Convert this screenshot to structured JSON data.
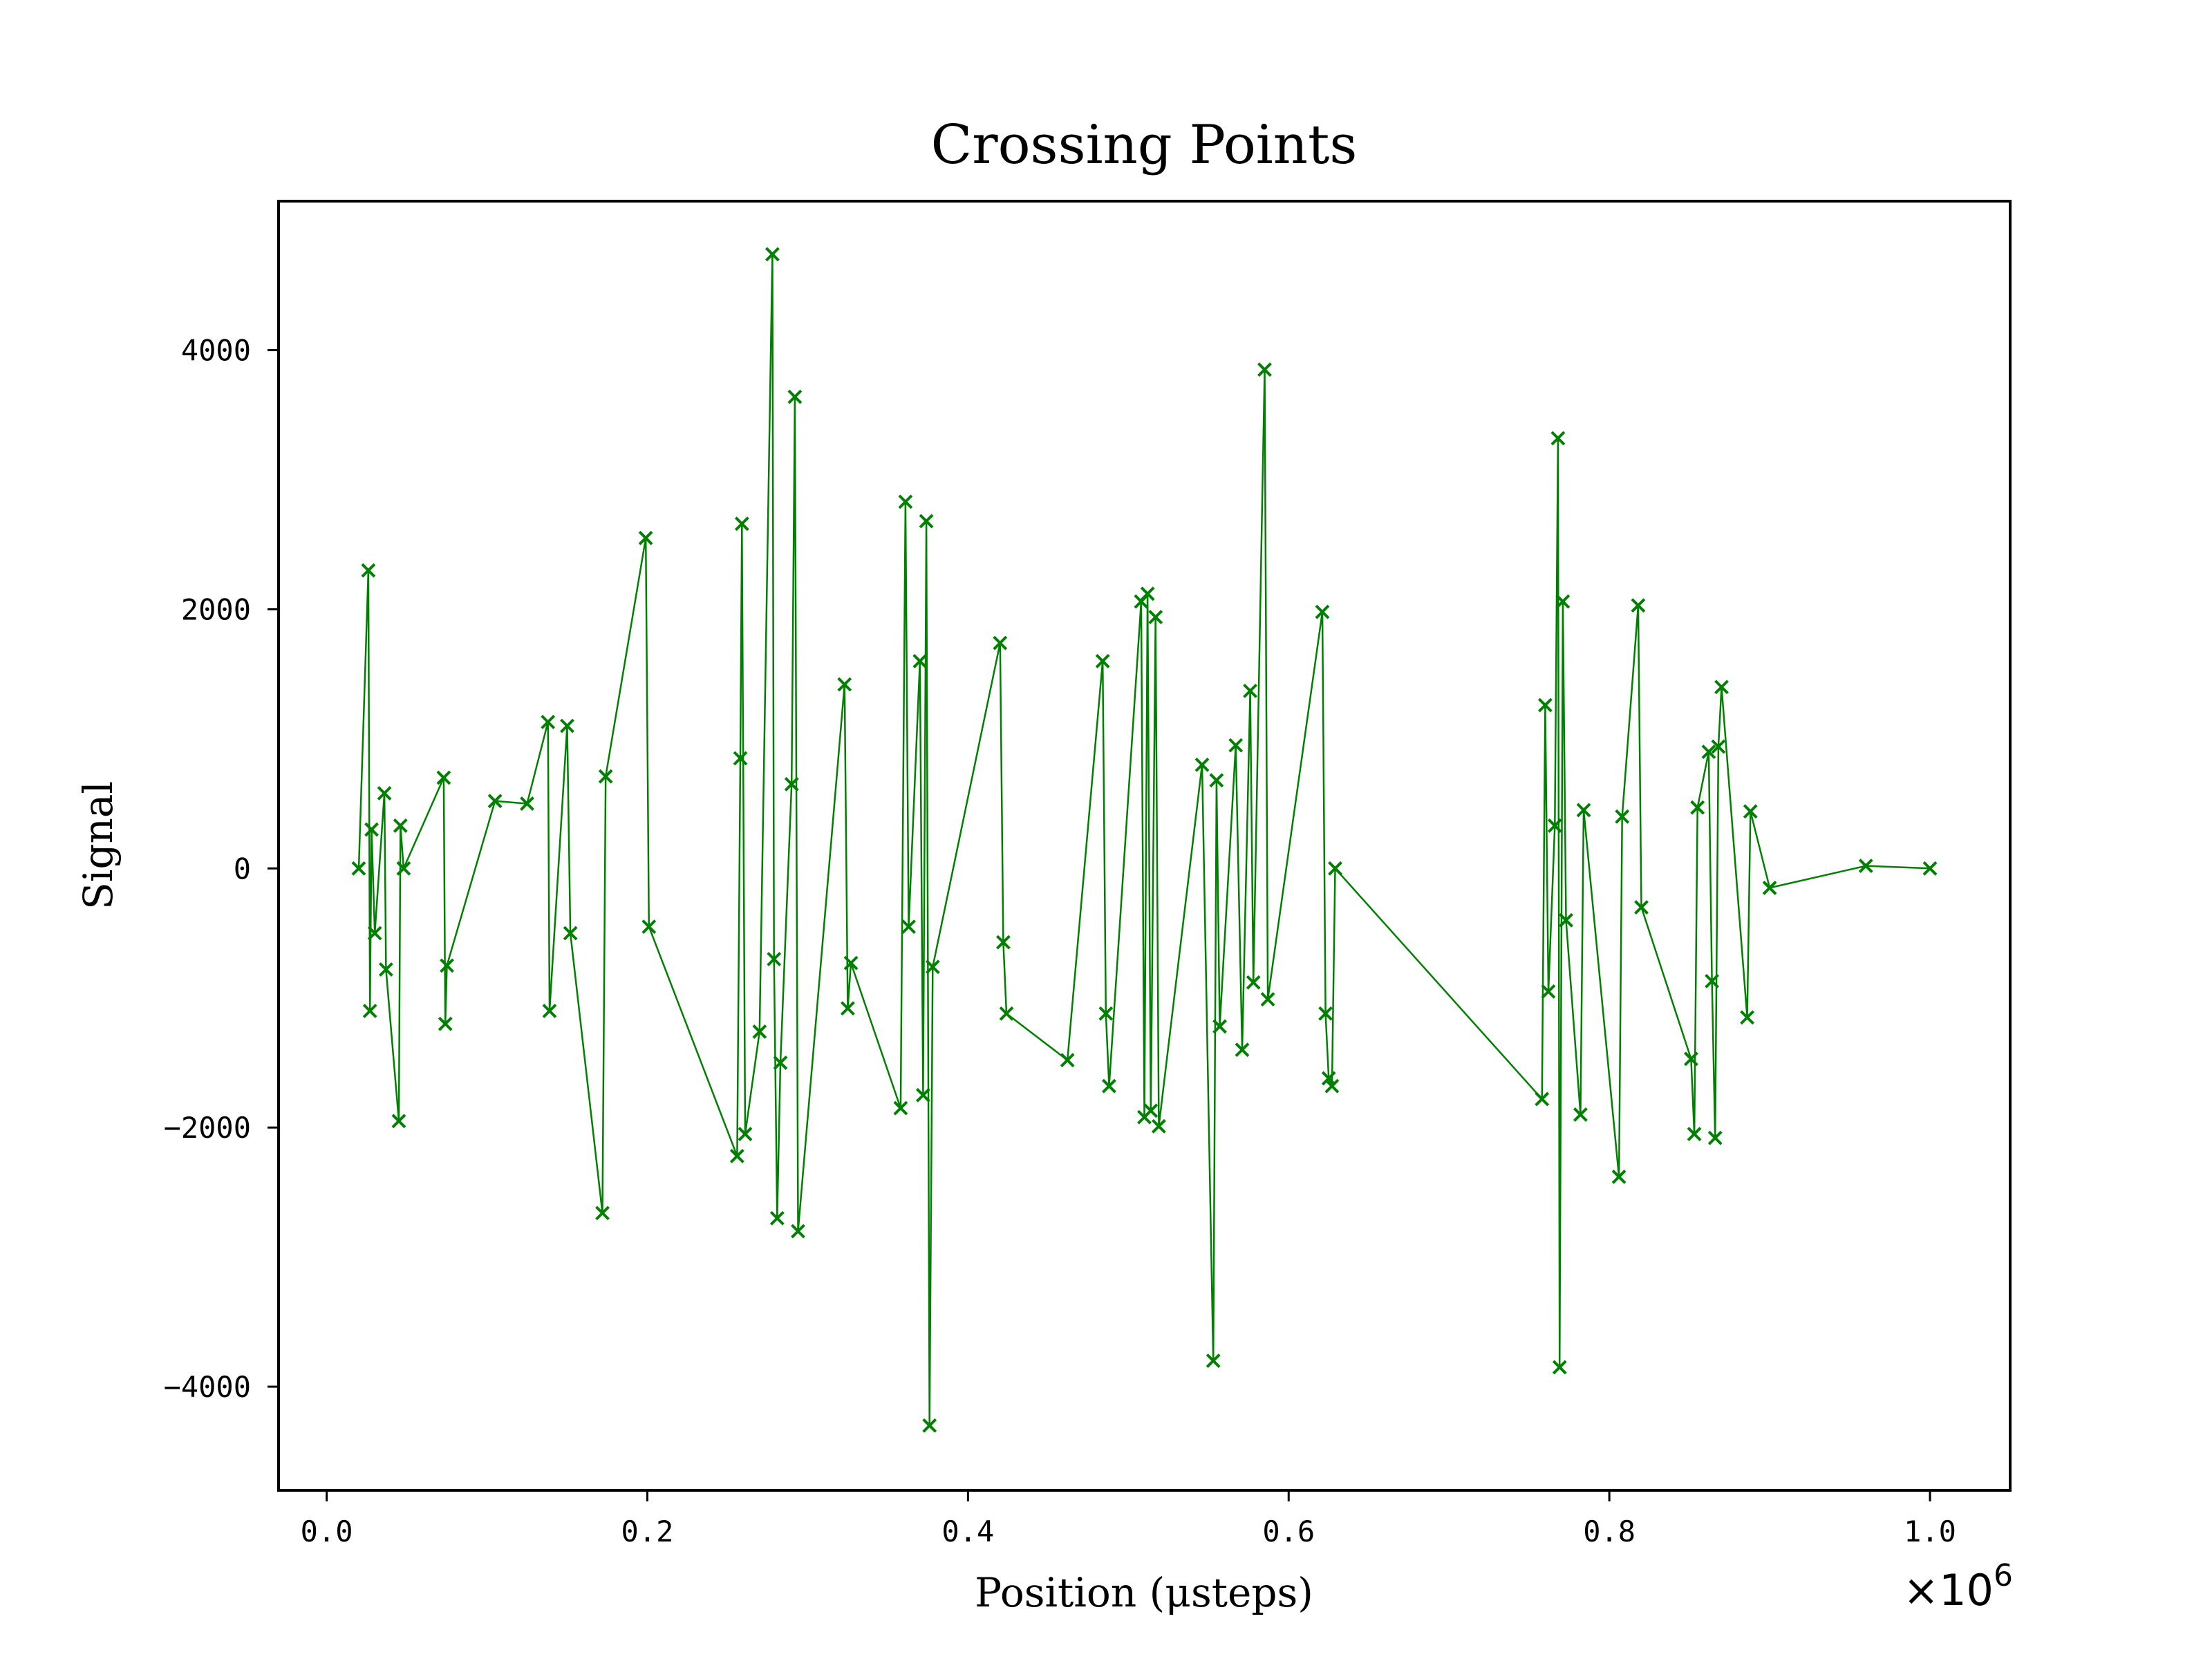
{
  "chart_data": {
    "type": "line",
    "title": "Crossing Points",
    "xlabel": "Position (μsteps)",
    "ylabel": "Signal",
    "x_scale_label": "×10",
    "x_scale_exponent": "6",
    "x_tick_labels": [
      "0.0",
      "0.2",
      "0.4",
      "0.6",
      "0.8",
      "1.0"
    ],
    "x_ticks": [
      0,
      200000,
      400000,
      600000,
      800000,
      1000000
    ],
    "y_tick_labels": [
      "4000",
      "2000",
      "0",
      "−2000",
      "−4000"
    ],
    "y_ticks": [
      4000,
      2000,
      0,
      -2000,
      -4000
    ],
    "xlim": [
      -30000,
      1050000
    ],
    "ylim": [
      -4800,
      5150
    ],
    "grid": false,
    "legend": "none",
    "marker": "x",
    "color": "#008000",
    "series": [
      {
        "x": [
          20000,
          26000,
          27000,
          28000,
          30000,
          36000,
          37000,
          45000,
          46000,
          48000,
          73000,
          74000,
          75000,
          105000,
          125000,
          138000,
          139000,
          150000,
          152000,
          172000,
          174000,
          199000,
          201000,
          256000,
          258000,
          259000,
          261000,
          270000,
          278000,
          279000,
          281000,
          283000,
          290000,
          292000,
          294000,
          323000,
          325000,
          327000,
          358000,
          361000,
          363000,
          370000,
          372000,
          374000,
          376000,
          378000,
          420000,
          422000,
          424000,
          462000,
          484000,
          486000,
          488000,
          508000,
          510000,
          512000,
          514000,
          517000,
          519000,
          546000,
          553000,
          555000,
          557000,
          567000,
          571000,
          576000,
          578000,
          585000,
          587000,
          621000,
          623000,
          625000,
          627000,
          629000,
          758000,
          760000,
          762000,
          766000,
          768000,
          769000,
          771000,
          773000,
          782000,
          784000,
          806000,
          808000,
          818000,
          820000,
          851000,
          853000,
          855000,
          862000,
          864000,
          866000,
          868000,
          870000,
          886000,
          888000,
          900000,
          960000,
          1000000
        ],
        "y": [
          0,
          2300,
          -1100,
          300,
          -500,
          580,
          -780,
          -1950,
          330,
          0,
          700,
          -1200,
          -750,
          520,
          500,
          1130,
          -1100,
          1100,
          -500,
          -2660,
          710,
          2550,
          -450,
          -2220,
          850,
          2660,
          -2050,
          -1260,
          4740,
          -700,
          -2700,
          -1500,
          650,
          3640,
          -2800,
          1420,
          -1080,
          -730,
          -1850,
          2830,
          -450,
          1600,
          -1750,
          2680,
          -4300,
          -760,
          1740,
          -570,
          -1120,
          -1480,
          1600,
          -1120,
          -1680,
          2060,
          -1920,
          2120,
          -1870,
          1940,
          -1990,
          800,
          -3800,
          680,
          -1220,
          950,
          -1400,
          1370,
          -880,
          3850,
          -1010,
          1980,
          -1120,
          -1620,
          -1680,
          0,
          -1780,
          1260,
          -950,
          330,
          3320,
          -3850,
          2060,
          -400,
          -1900,
          450,
          -2380,
          400,
          2030,
          -300,
          -1470,
          -2050,
          470,
          900,
          -870,
          -2080,
          940,
          1400,
          -1150,
          440,
          -150,
          20,
          0
        ]
      }
    ]
  }
}
